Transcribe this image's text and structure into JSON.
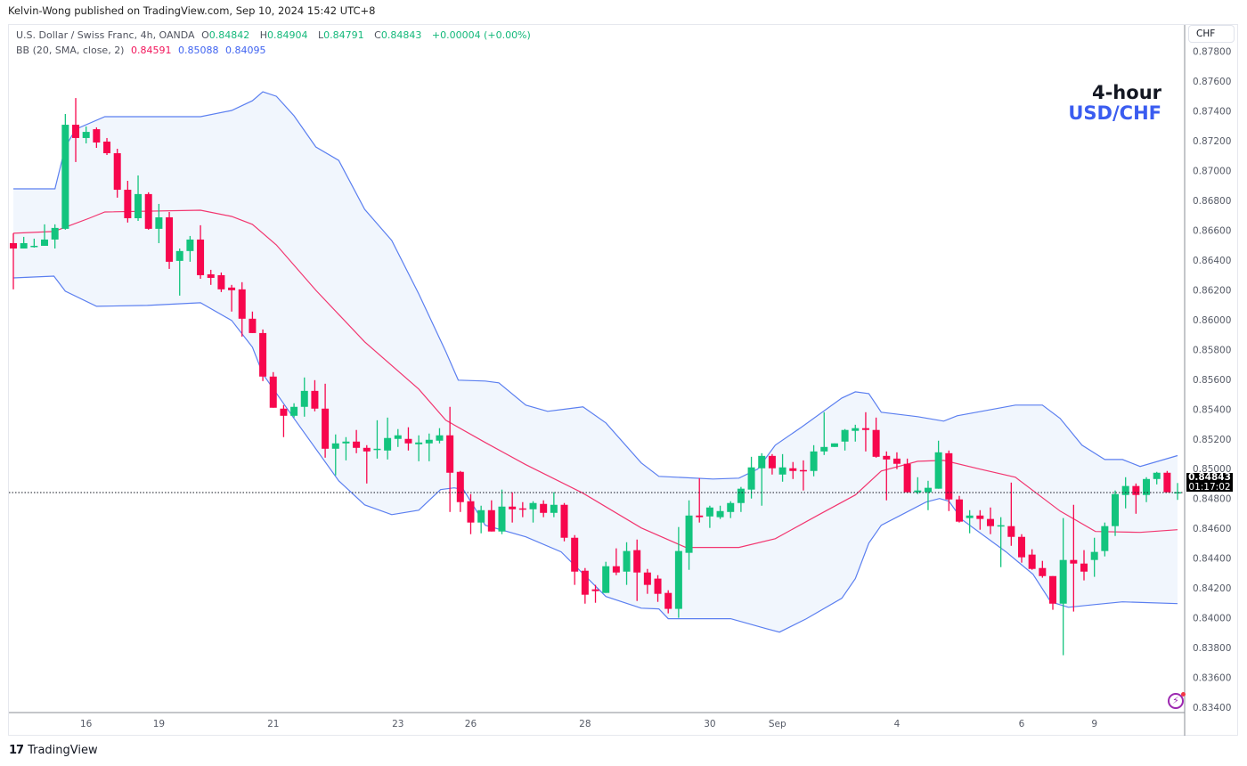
{
  "publisher_line": "Kelvin-Wong published on TradingView.com, Sep 10, 2024 15:42 UTC+8",
  "legend": {
    "symbol": "U.S. Dollar / Swiss Franc, 4h, OANDA",
    "o_label": "O",
    "o": "0.84842",
    "h_label": "H",
    "h": "0.84904",
    "l_label": "L",
    "l": "0.84791",
    "c_label": "C",
    "c": "0.84843",
    "change": "+0.00004 (+0.00%)",
    "bb_label": "BB (20, SMA, close, 2)",
    "bb_basis": "0.84591",
    "bb_upper": "0.85088",
    "bb_lower": "0.84095"
  },
  "annotation": {
    "line1": "4-hour",
    "line2": "USD/CHF"
  },
  "currency_button": "CHF",
  "last_price": {
    "price": "0.84843",
    "countdown": "01:17:02"
  },
  "branding": "TradingView",
  "icons": {
    "alert": "lightning-icon",
    "logo": "tradingview-logo-icon"
  },
  "colors": {
    "up": "#13c47e",
    "down": "#f7074d",
    "band_line": "#5b7ff0",
    "basis": "#f23670",
    "band_fill": "#f1f6fd",
    "annotation_blue": "#3a5cf0"
  },
  "chart_data": {
    "type": "candlestick",
    "title": "",
    "ylim": [
      0.834,
      0.878
    ],
    "y_ticks": [
      "0.87800",
      "0.87600",
      "0.87400",
      "0.87200",
      "0.87000",
      "0.86800",
      "0.86600",
      "0.86400",
      "0.86200",
      "0.86000",
      "0.85800",
      "0.85600",
      "0.85400",
      "0.85200",
      "0.85000",
      "0.84800",
      "0.84600",
      "0.84400",
      "0.84200",
      "0.84000",
      "0.83800",
      "0.83600",
      "0.83400"
    ],
    "x_labels": [
      {
        "label": "16",
        "bar": 7
      },
      {
        "label": "19",
        "bar": 14
      },
      {
        "label": "21",
        "bar": 25
      },
      {
        "label": "23",
        "bar": 37
      },
      {
        "label": "26",
        "bar": 44
      },
      {
        "label": "28",
        "bar": 55
      },
      {
        "label": "30",
        "bar": 67
      },
      {
        "label": "Sep",
        "bar": 73.5
      },
      {
        "label": "4",
        "bar": 85
      },
      {
        "label": "6",
        "bar": 97
      },
      {
        "label": "9",
        "bar": 104
      }
    ],
    "ohlc_columns": [
      "open",
      "high",
      "low",
      "close"
    ],
    "candles": [
      [
        0.86513,
        0.86579,
        0.86203,
        0.86477
      ],
      [
        0.86477,
        0.86555,
        0.86477,
        0.86513
      ],
      [
        0.86489,
        0.86543,
        0.86483,
        0.86495
      ],
      [
        0.86495,
        0.86639,
        0.86495,
        0.86537
      ],
      [
        0.86537,
        0.86639,
        0.86477,
        0.86615
      ],
      [
        0.86609,
        0.87379,
        0.86603,
        0.87307
      ],
      [
        0.87307,
        0.87486,
        0.87057,
        0.87218
      ],
      [
        0.87218,
        0.87295,
        0.87182,
        0.87259
      ],
      [
        0.87277,
        0.87289,
        0.87152,
        0.87188
      ],
      [
        0.87194,
        0.87218,
        0.87104,
        0.87116
      ],
      [
        0.87116,
        0.87146,
        0.86818,
        0.86871
      ],
      [
        0.86871,
        0.86931,
        0.86651,
        0.8668
      ],
      [
        0.8668,
        0.86967,
        0.86662,
        0.86842
      ],
      [
        0.86842,
        0.86854,
        0.86603,
        0.86609
      ],
      [
        0.86609,
        0.86776,
        0.86513,
        0.86686
      ],
      [
        0.86686,
        0.86722,
        0.8634,
        0.86388
      ],
      [
        0.86394,
        0.86477,
        0.86161,
        0.8646
      ],
      [
        0.8646,
        0.86561,
        0.86388,
        0.86537
      ],
      [
        0.86537,
        0.86633,
        0.86274,
        0.86298
      ],
      [
        0.86304,
        0.86334,
        0.86233,
        0.8628
      ],
      [
        0.86298,
        0.86316,
        0.86185,
        0.86203
      ],
      [
        0.86215,
        0.86233,
        0.86054,
        0.86197
      ],
      [
        0.86203,
        0.86251,
        0.85886,
        0.86006
      ],
      [
        0.86006,
        0.86054,
        0.8591,
        0.8591
      ],
      [
        0.8591,
        0.85934,
        0.85588,
        0.85618
      ],
      [
        0.85618,
        0.85648,
        0.85409,
        0.85409
      ],
      [
        0.85403,
        0.85427,
        0.85212,
        0.85355
      ],
      [
        0.85355,
        0.85439,
        0.85343,
        0.85415
      ],
      [
        0.85415,
        0.85612,
        0.85349,
        0.85522
      ],
      [
        0.85522,
        0.85594,
        0.85385,
        0.85403
      ],
      [
        0.85403,
        0.8557,
        0.85074,
        0.85134
      ],
      [
        0.85134,
        0.8523,
        0.84955,
        0.8517
      ],
      [
        0.8517,
        0.85212,
        0.85056,
        0.85182
      ],
      [
        0.85182,
        0.8526,
        0.85104,
        0.8514
      ],
      [
        0.8514,
        0.85158,
        0.84901,
        0.85116
      ],
      [
        0.85128,
        0.85325,
        0.85068,
        0.85134
      ],
      [
        0.85122,
        0.85343,
        0.85062,
        0.85206
      ],
      [
        0.852,
        0.85266,
        0.85146,
        0.85224
      ],
      [
        0.852,
        0.85278,
        0.85122,
        0.8517
      ],
      [
        0.85164,
        0.85224,
        0.8505,
        0.85176
      ],
      [
        0.8517,
        0.85236,
        0.8505,
        0.85194
      ],
      [
        0.85188,
        0.85272,
        0.8517,
        0.85224
      ],
      [
        0.85224,
        0.85415,
        0.8471,
        0.84973
      ],
      [
        0.84979,
        0.84985,
        0.8471,
        0.84776
      ],
      [
        0.84782,
        0.8483,
        0.84561,
        0.84639
      ],
      [
        0.84639,
        0.84752,
        0.84567,
        0.84722
      ],
      [
        0.84722,
        0.84788,
        0.84579,
        0.84579
      ],
      [
        0.84579,
        0.8486,
        0.84561,
        0.84746
      ],
      [
        0.84746,
        0.84842,
        0.84639,
        0.84728
      ],
      [
        0.84734,
        0.84776,
        0.84675,
        0.84728
      ],
      [
        0.84728,
        0.84782,
        0.84639,
        0.8477
      ],
      [
        0.84764,
        0.84788,
        0.84675,
        0.84704
      ],
      [
        0.84704,
        0.84842,
        0.84675,
        0.84758
      ],
      [
        0.84758,
        0.8477,
        0.84513,
        0.84537
      ],
      [
        0.84537,
        0.84555,
        0.84221,
        0.8431
      ],
      [
        0.84316,
        0.84334,
        0.84095,
        0.84155
      ],
      [
        0.84191,
        0.84221,
        0.84101,
        0.84179
      ],
      [
        0.84167,
        0.84376,
        0.84167,
        0.84346
      ],
      [
        0.84346,
        0.84466,
        0.84286,
        0.84304
      ],
      [
        0.8431,
        0.84507,
        0.84221,
        0.84448
      ],
      [
        0.84454,
        0.84525,
        0.84113,
        0.84304
      ],
      [
        0.84304,
        0.84328,
        0.84161,
        0.84221
      ],
      [
        0.84263,
        0.84286,
        0.84107,
        0.84161
      ],
      [
        0.84167,
        0.84185,
        0.8403,
        0.8406
      ],
      [
        0.8406,
        0.84609,
        0.84,
        0.84448
      ],
      [
        0.84436,
        0.84788,
        0.84322,
        0.84686
      ],
      [
        0.84686,
        0.84937,
        0.84639,
        0.84675
      ],
      [
        0.8468,
        0.84752,
        0.84603,
        0.8474
      ],
      [
        0.84675,
        0.84752,
        0.84663,
        0.84716
      ],
      [
        0.8471,
        0.84782,
        0.84669,
        0.8477
      ],
      [
        0.8477,
        0.84878,
        0.8471,
        0.84866
      ],
      [
        0.8486,
        0.8508,
        0.848,
        0.85009
      ],
      [
        0.85003,
        0.85104,
        0.84752,
        0.85086
      ],
      [
        0.85086,
        0.85098,
        0.84961,
        0.85003
      ],
      [
        0.84961,
        0.85098,
        0.84913,
        0.85009
      ],
      [
        0.85003,
        0.85045,
        0.84931,
        0.84985
      ],
      [
        0.84991,
        0.85056,
        0.84854,
        0.84985
      ],
      [
        0.84985,
        0.85158,
        0.84949,
        0.85116
      ],
      [
        0.85116,
        0.85379,
        0.85092,
        0.85146
      ],
      [
        0.85146,
        0.8517,
        0.85146,
        0.8517
      ],
      [
        0.85182,
        0.85266,
        0.85122,
        0.8526
      ],
      [
        0.85254,
        0.85295,
        0.85182,
        0.85272
      ],
      [
        0.85272,
        0.85379,
        0.85116,
        0.8526
      ],
      [
        0.8526,
        0.85343,
        0.85074,
        0.8508
      ],
      [
        0.85086,
        0.85116,
        0.84788,
        0.85062
      ],
      [
        0.85068,
        0.8511,
        0.84997,
        0.85033
      ],
      [
        0.85033,
        0.85068,
        0.84842,
        0.84842
      ],
      [
        0.84842,
        0.84943,
        0.8483,
        0.84854
      ],
      [
        0.84842,
        0.84919,
        0.84722,
        0.84872
      ],
      [
        0.84866,
        0.85188,
        0.84866,
        0.8511
      ],
      [
        0.85104,
        0.85122,
        0.84716,
        0.84794
      ],
      [
        0.84794,
        0.84818,
        0.84639,
        0.84645
      ],
      [
        0.84669,
        0.84722,
        0.84567,
        0.84686
      ],
      [
        0.84686,
        0.84722,
        0.84591,
        0.84663
      ],
      [
        0.84663,
        0.8474,
        0.84561,
        0.84615
      ],
      [
        0.84615,
        0.84675,
        0.8434,
        0.84621
      ],
      [
        0.84615,
        0.84907,
        0.84483,
        0.84543
      ],
      [
        0.84543,
        0.84561,
        0.8437,
        0.84406
      ],
      [
        0.84424,
        0.8446,
        0.84322,
        0.84328
      ],
      [
        0.84334,
        0.84382,
        0.84269,
        0.8428
      ],
      [
        0.8428,
        0.8428,
        0.84054,
        0.84095
      ],
      [
        0.84095,
        0.84669,
        0.83749,
        0.84388
      ],
      [
        0.84388,
        0.84758,
        0.84042,
        0.84364
      ],
      [
        0.84364,
        0.84454,
        0.84251,
        0.8431
      ],
      [
        0.84388,
        0.84537,
        0.84275,
        0.84442
      ],
      [
        0.84448,
        0.84639,
        0.84412,
        0.84615
      ],
      [
        0.84615,
        0.84854,
        0.84549,
        0.8483
      ],
      [
        0.84824,
        0.84943,
        0.84734,
        0.84884
      ],
      [
        0.84884,
        0.84901,
        0.84698,
        0.84824
      ],
      [
        0.84824,
        0.84943,
        0.84776,
        0.84931
      ],
      [
        0.84931,
        0.84979,
        0.84895,
        0.84973
      ],
      [
        0.84973,
        0.84985,
        0.84842,
        0.84842
      ],
      [
        0.84842,
        0.84904,
        0.84791,
        0.84843
      ]
    ],
    "bollinger": {
      "params": "20, SMA, close, 2",
      "upper": [
        [
          0,
          0.86877
        ],
        [
          4,
          0.86877
        ],
        [
          5,
          0.87158
        ],
        [
          6,
          0.87277
        ],
        [
          8.8,
          0.87361
        ],
        [
          18,
          0.87361
        ],
        [
          21,
          0.87403
        ],
        [
          23,
          0.87468
        ],
        [
          24,
          0.87528
        ],
        [
          25.3,
          0.87498
        ],
        [
          27,
          0.87367
        ],
        [
          29.1,
          0.87158
        ],
        [
          31.3,
          0.87068
        ],
        [
          33.8,
          0.8674
        ],
        [
          36.4,
          0.86531
        ],
        [
          39,
          0.86173
        ],
        [
          41.6,
          0.85785
        ],
        [
          42.8,
          0.85594
        ],
        [
          45.4,
          0.85588
        ],
        [
          46.7,
          0.85576
        ],
        [
          49.3,
          0.85427
        ],
        [
          51.4,
          0.85385
        ],
        [
          54.8,
          0.85415
        ],
        [
          57,
          0.85307
        ],
        [
          60.4,
          0.85039
        ],
        [
          62.1,
          0.84949
        ],
        [
          67.3,
          0.84931
        ],
        [
          69.8,
          0.84937
        ],
        [
          71.6,
          0.84997
        ],
        [
          73.3,
          0.85158
        ],
        [
          75.8,
          0.85278
        ],
        [
          79.7,
          0.85474
        ],
        [
          81,
          0.85516
        ],
        [
          82.3,
          0.85504
        ],
        [
          83.5,
          0.85379
        ],
        [
          87,
          0.85349
        ],
        [
          89.5,
          0.85319
        ],
        [
          90.8,
          0.85355
        ],
        [
          96.4,
          0.85427
        ],
        [
          99,
          0.85427
        ],
        [
          100.7,
          0.85337
        ],
        [
          102.8,
          0.85158
        ],
        [
          105,
          0.85062
        ],
        [
          106.7,
          0.85062
        ],
        [
          108.4,
          0.85015
        ],
        [
          112,
          0.85088
        ]
      ],
      "basis": [
        [
          0,
          0.86579
        ],
        [
          3.9,
          0.86591
        ],
        [
          7.3,
          0.8668
        ],
        [
          8.8,
          0.86722
        ],
        [
          18,
          0.86734
        ],
        [
          21,
          0.86692
        ],
        [
          23,
          0.86639
        ],
        [
          25.3,
          0.86501
        ],
        [
          29.1,
          0.86197
        ],
        [
          33.8,
          0.85851
        ],
        [
          39,
          0.85534
        ],
        [
          41.6,
          0.85325
        ],
        [
          45.4,
          0.85176
        ],
        [
          49.3,
          0.85027
        ],
        [
          54.8,
          0.84836
        ],
        [
          60.4,
          0.84603
        ],
        [
          64.7,
          0.84472
        ],
        [
          69.8,
          0.84472
        ],
        [
          73.3,
          0.84531
        ],
        [
          77.5,
          0.84692
        ],
        [
          81,
          0.84824
        ],
        [
          83.5,
          0.84985
        ],
        [
          87,
          0.8505
        ],
        [
          89.5,
          0.85056
        ],
        [
          93,
          0.84997
        ],
        [
          96.4,
          0.84943
        ],
        [
          100.7,
          0.84716
        ],
        [
          104.1,
          0.84579
        ],
        [
          108.4,
          0.84573
        ],
        [
          112,
          0.84591
        ]
      ],
      "lower": [
        [
          0,
          0.8628
        ],
        [
          3.9,
          0.86292
        ],
        [
          5,
          0.86191
        ],
        [
          8,
          0.86089
        ],
        [
          12.9,
          0.86095
        ],
        [
          18,
          0.86113
        ],
        [
          21,
          0.85994
        ],
        [
          23,
          0.85815
        ],
        [
          24,
          0.85636
        ],
        [
          27,
          0.85337
        ],
        [
          31.3,
          0.84919
        ],
        [
          33.8,
          0.84758
        ],
        [
          36.4,
          0.84692
        ],
        [
          39,
          0.84722
        ],
        [
          41.1,
          0.8486
        ],
        [
          42.4,
          0.84872
        ],
        [
          43.3,
          0.8486
        ],
        [
          45.4,
          0.84621
        ],
        [
          49.3,
          0.84543
        ],
        [
          52.7,
          0.84442
        ],
        [
          57,
          0.84143
        ],
        [
          60.4,
          0.84065
        ],
        [
          62.1,
          0.8406
        ],
        [
          63,
          0.83994
        ],
        [
          69,
          0.83994
        ],
        [
          72.4,
          0.83928
        ],
        [
          73.7,
          0.83904
        ],
        [
          76.3,
          0.83994
        ],
        [
          79.7,
          0.84131
        ],
        [
          81,
          0.84263
        ],
        [
          82.3,
          0.84501
        ],
        [
          83.5,
          0.84621
        ],
        [
          87.8,
          0.84776
        ],
        [
          89.1,
          0.848
        ],
        [
          90,
          0.84782
        ],
        [
          91.3,
          0.84657
        ],
        [
          95.5,
          0.84442
        ],
        [
          98.1,
          0.84292
        ],
        [
          99.8,
          0.84107
        ],
        [
          101.5,
          0.84071
        ],
        [
          104.1,
          0.84089
        ],
        [
          106.7,
          0.84107
        ],
        [
          112,
          0.84095
        ]
      ]
    }
  }
}
